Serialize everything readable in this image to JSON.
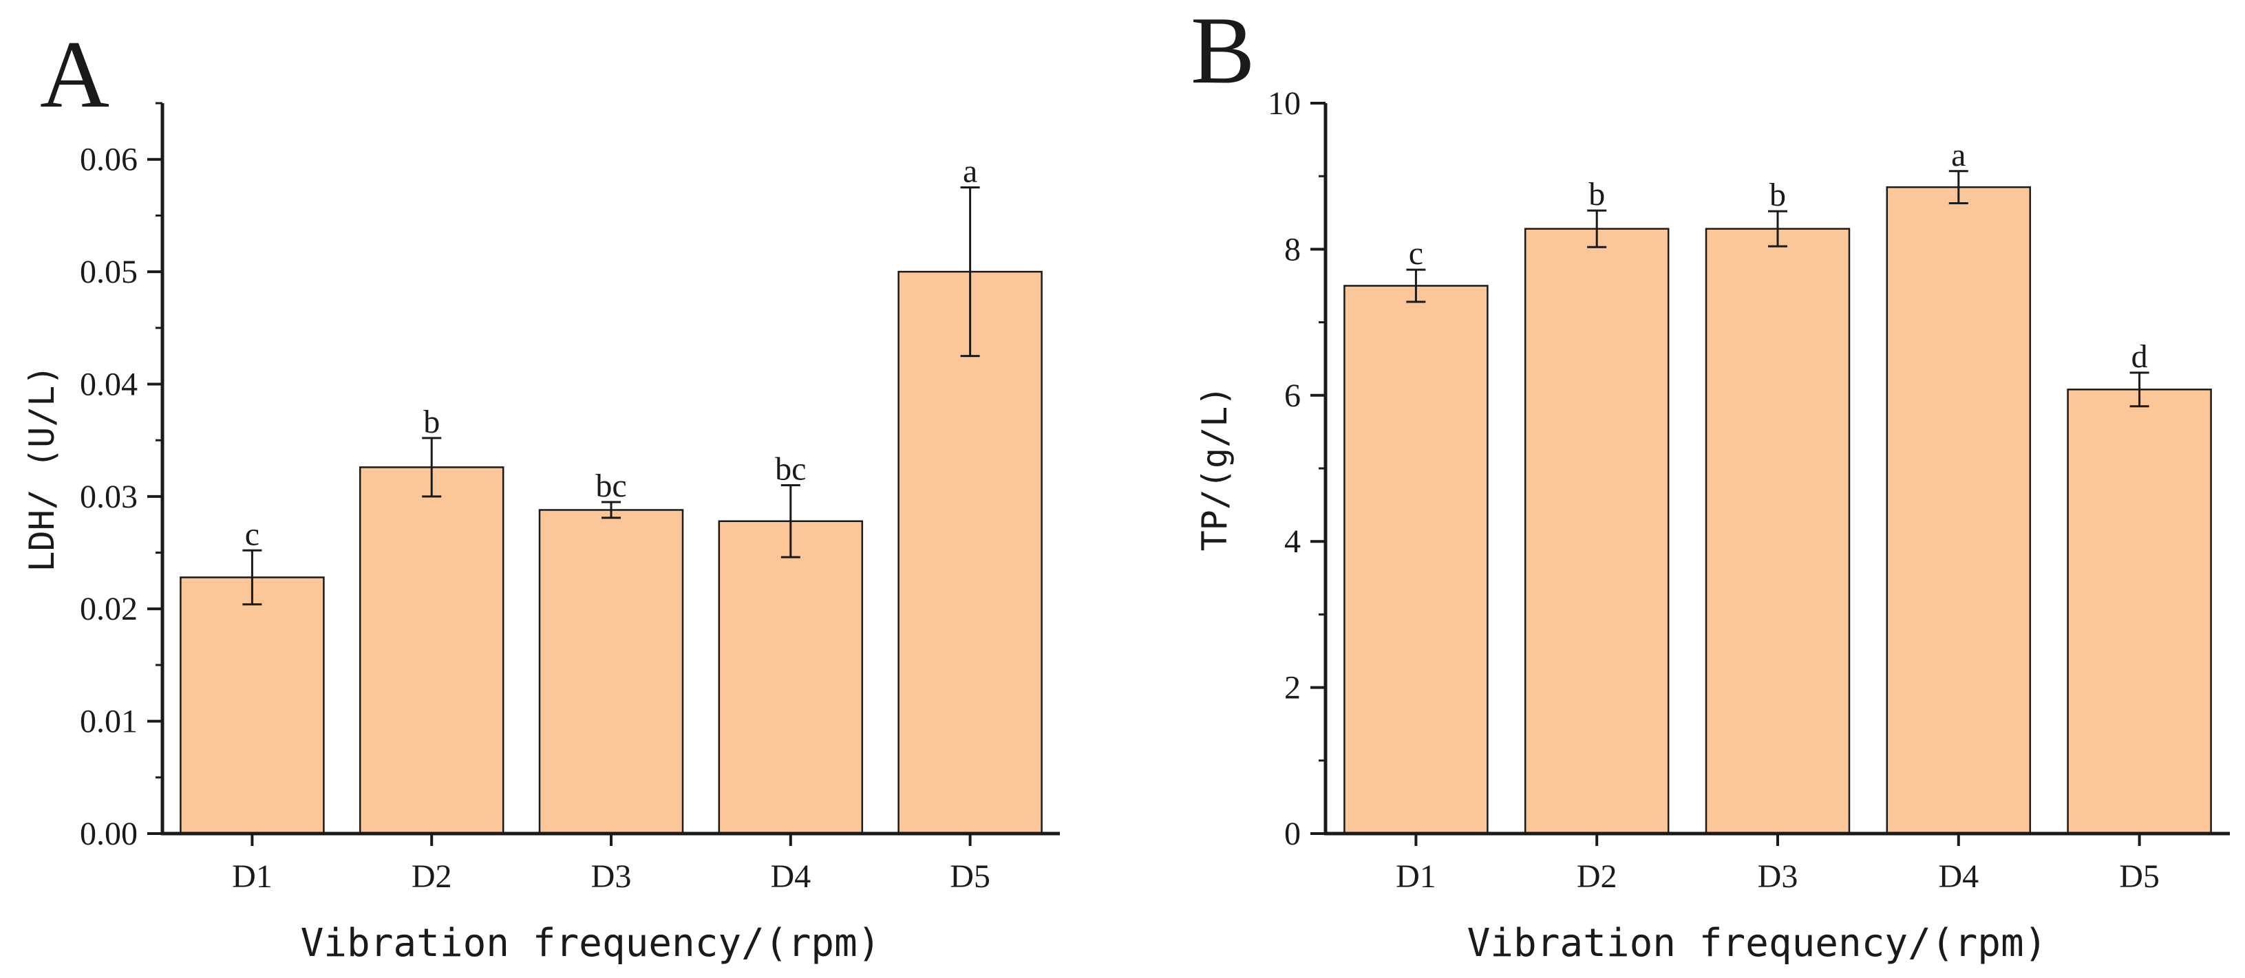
{
  "chart_data": [
    {
      "panel": "A",
      "type": "bar",
      "categories": [
        "D1",
        "D2",
        "D3",
        "D4",
        "D5"
      ],
      "values": [
        0.0228,
        0.0326,
        0.0288,
        0.0278,
        0.05
      ],
      "errors": [
        0.0024,
        0.0026,
        0.0007,
        0.0032,
        0.0075
      ],
      "significance": [
        "c",
        "b",
        "bc",
        "bc",
        "a"
      ],
      "xlabel": "Vibration frequency/(rpm)",
      "ylabel": "LDH/ (U/L)",
      "ylim": [
        0,
        0.065
      ],
      "yticks": [
        0.0,
        0.01,
        0.02,
        0.03,
        0.04,
        0.05,
        0.06
      ],
      "ytick_labels": [
        "0.00",
        "0.01",
        "0.02",
        "0.03",
        "0.04",
        "0.05",
        "0.06"
      ],
      "minor_ytick_step": 0.005,
      "bar_color": "#FBC799",
      "bar_edge_color": "#1a1a1a"
    },
    {
      "panel": "B",
      "type": "bar",
      "categories": [
        "D1",
        "D2",
        "D3",
        "D4",
        "D5"
      ],
      "values": [
        7.5,
        8.28,
        8.28,
        8.85,
        6.08
      ],
      "errors": [
        0.22,
        0.25,
        0.24,
        0.22,
        0.23
      ],
      "significance": [
        "c",
        "b",
        "b",
        "a",
        "d"
      ],
      "xlabel": "Vibration frequency/(rpm)",
      "ylabel": "TP/(g/L)",
      "ylim": [
        0,
        10
      ],
      "yticks": [
        0,
        2,
        4,
        6,
        8,
        10
      ],
      "ytick_labels": [
        "0",
        "2",
        "4",
        "6",
        "8",
        "10"
      ],
      "minor_ytick_step": 1,
      "bar_color": "#FBC799",
      "bar_edge_color": "#1a1a1a"
    }
  ]
}
